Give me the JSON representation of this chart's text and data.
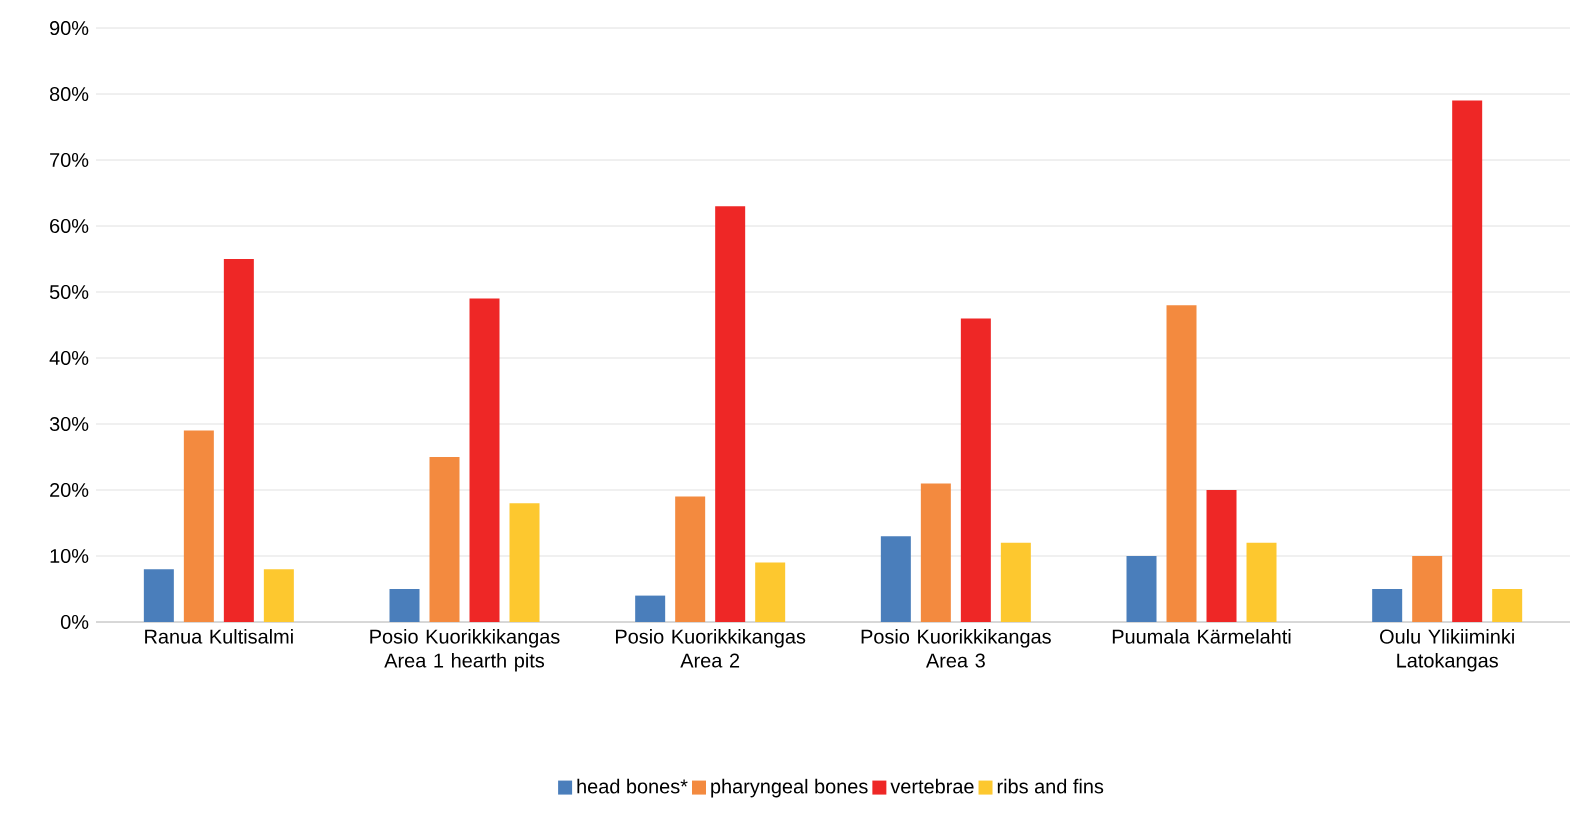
{
  "chart_data": {
    "type": "bar",
    "categories": [
      "Ranua Kultisalmi",
      "Posio Kuorikkikangas Area 1 hearth pits",
      "Posio Kuorikkikangas Area 2",
      "Posio Kuorikkikangas Area 3",
      "Puumala Kärmelahti",
      "Oulu Ylikiiminki Latokangas"
    ],
    "series": [
      {
        "name": "head bones*",
        "color": "#4a7ebb",
        "values": [
          8,
          5,
          4,
          13,
          10,
          5
        ]
      },
      {
        "name": "pharyngeal bones",
        "color": "#f38a3f",
        "values": [
          29,
          25,
          19,
          21,
          48,
          10
        ]
      },
      {
        "name": "vertebrae",
        "color": "#ee2726",
        "values": [
          55,
          49,
          63,
          46,
          20,
          79
        ]
      },
      {
        "name": "ribs and fins",
        "color": "#fdc82f",
        "values": [
          8,
          18,
          9,
          12,
          12,
          5
        ]
      }
    ],
    "ylim": [
      0,
      90
    ],
    "yticks": [
      {
        "value": 0,
        "label": "0%"
      },
      {
        "value": 10,
        "label": "10%"
      },
      {
        "value": 20,
        "label": "20%"
      },
      {
        "value": 30,
        "label": "30%"
      },
      {
        "value": 40,
        "label": "40%"
      },
      {
        "value": 50,
        "label": "50%"
      },
      {
        "value": 60,
        "label": "60%"
      },
      {
        "value": 70,
        "label": "70%"
      },
      {
        "value": 80,
        "label": "80%"
      },
      {
        "value": 90,
        "label": "90%"
      }
    ],
    "grid": "y",
    "legend": "bottom"
  }
}
